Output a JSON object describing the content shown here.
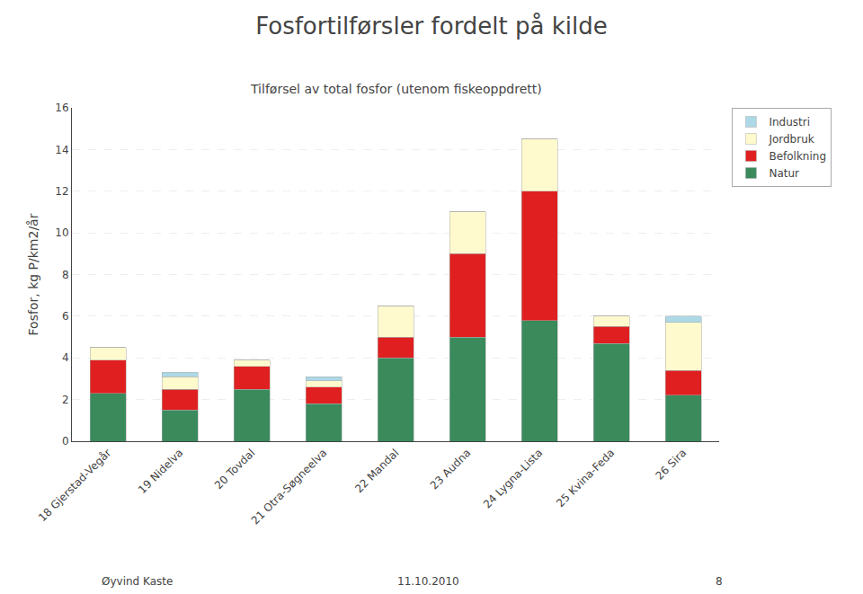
{
  "chart_data": {
    "type": "bar",
    "title": "Fosfortilførsler fordelt på kilde",
    "subtitle": "Tilførsel av total fosfor (utenom fiskeoppdrett)",
    "ylabel": "Fosfor, kg P/km2/år",
    "categories": [
      "18 Gjerstad-Vegår",
      "19 Nidelva",
      "20 Tovdal",
      "21 Otra-Søgneelva",
      "22 Mandal",
      "23 Audna",
      "24 Lygna-Lista",
      "25 Kvina-Feda",
      "26 Sira"
    ],
    "series": [
      {
        "name": "Natur",
        "color": "#3a8a5c",
        "values": [
          2.3,
          1.5,
          2.5,
          1.8,
          4.0,
          5.0,
          5.8,
          4.7,
          2.2
        ]
      },
      {
        "name": "Befolkning",
        "color": "#e02020",
        "values": [
          1.6,
          1.0,
          1.1,
          0.8,
          1.0,
          4.0,
          6.2,
          0.8,
          1.2
        ]
      },
      {
        "name": "Jordbruk",
        "color": "#fffacd",
        "values": [
          0.6,
          0.6,
          0.3,
          0.3,
          1.5,
          2.0,
          2.5,
          0.5,
          2.3
        ]
      },
      {
        "name": "Industri",
        "color": "#add8e6",
        "values": [
          0.0,
          0.2,
          0.0,
          0.2,
          0.0,
          0.0,
          0.0,
          0.0,
          0.3
        ]
      }
    ],
    "stacked": true,
    "ylim": [
      0,
      16
    ],
    "yticks": [
      0,
      2,
      4,
      6,
      8,
      10,
      12,
      14,
      16
    ],
    "grid": true,
    "legend": "right",
    "annotations": [
      "Øyvind Kaste",
      "11.10.2010",
      "8"
    ]
  }
}
